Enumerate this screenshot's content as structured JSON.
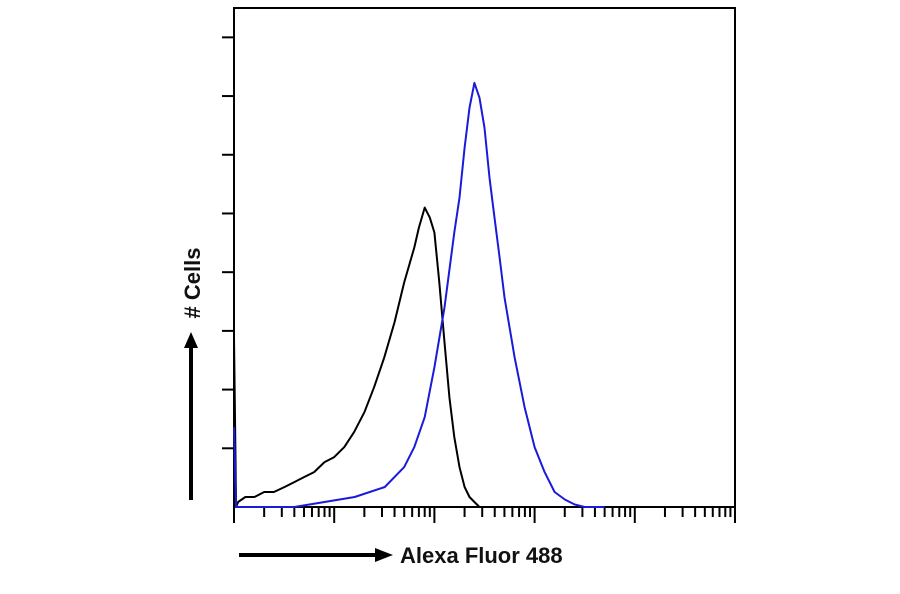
{
  "chart_data": {
    "type": "line",
    "title": "",
    "xlabel": "Alexa Fluor 488",
    "ylabel": "# Cells",
    "x_scale": "log",
    "xlim": [
      1,
      100000
    ],
    "ylim": [
      0,
      1
    ],
    "grid": false,
    "legend": "none",
    "series": [
      {
        "color": "#000000",
        "x": [
          1,
          1.05,
          1.1,
          1.3,
          1.6,
          2,
          2.5,
          3.2,
          4,
          5,
          6.3,
          8,
          10,
          12.6,
          15.8,
          20,
          25,
          31.6,
          40,
          50,
          63,
          70,
          80,
          90,
          100,
          112,
          126,
          141,
          158,
          178,
          200,
          224,
          251,
          282,
          316
        ],
        "y": [
          0.34,
          0.0,
          0.01,
          0.02,
          0.02,
          0.03,
          0.03,
          0.04,
          0.05,
          0.06,
          0.07,
          0.09,
          0.1,
          0.12,
          0.15,
          0.19,
          0.24,
          0.3,
          0.37,
          0.45,
          0.52,
          0.56,
          0.6,
          0.58,
          0.55,
          0.45,
          0.33,
          0.22,
          0.14,
          0.08,
          0.04,
          0.02,
          0.01,
          0.0,
          0.0
        ]
      },
      {
        "color": "#1a1adb",
        "x": [
          1,
          1.05,
          1.1,
          2,
          4,
          8,
          16,
          32,
          50,
          63,
          80,
          100,
          126,
          158,
          178,
          200,
          224,
          251,
          282,
          316,
          355,
          398,
          447,
          501,
          631,
          794,
          1000,
          1259,
          1585,
          2000,
          2512,
          3162,
          3981,
          5012
        ],
        "y": [
          0.16,
          0.0,
          0.0,
          0.0,
          0.0,
          0.01,
          0.02,
          0.04,
          0.08,
          0.12,
          0.18,
          0.28,
          0.4,
          0.55,
          0.62,
          0.72,
          0.8,
          0.85,
          0.82,
          0.76,
          0.66,
          0.58,
          0.5,
          0.42,
          0.3,
          0.2,
          0.12,
          0.07,
          0.03,
          0.015,
          0.005,
          0.0,
          0.0,
          0.0
        ]
      }
    ]
  }
}
